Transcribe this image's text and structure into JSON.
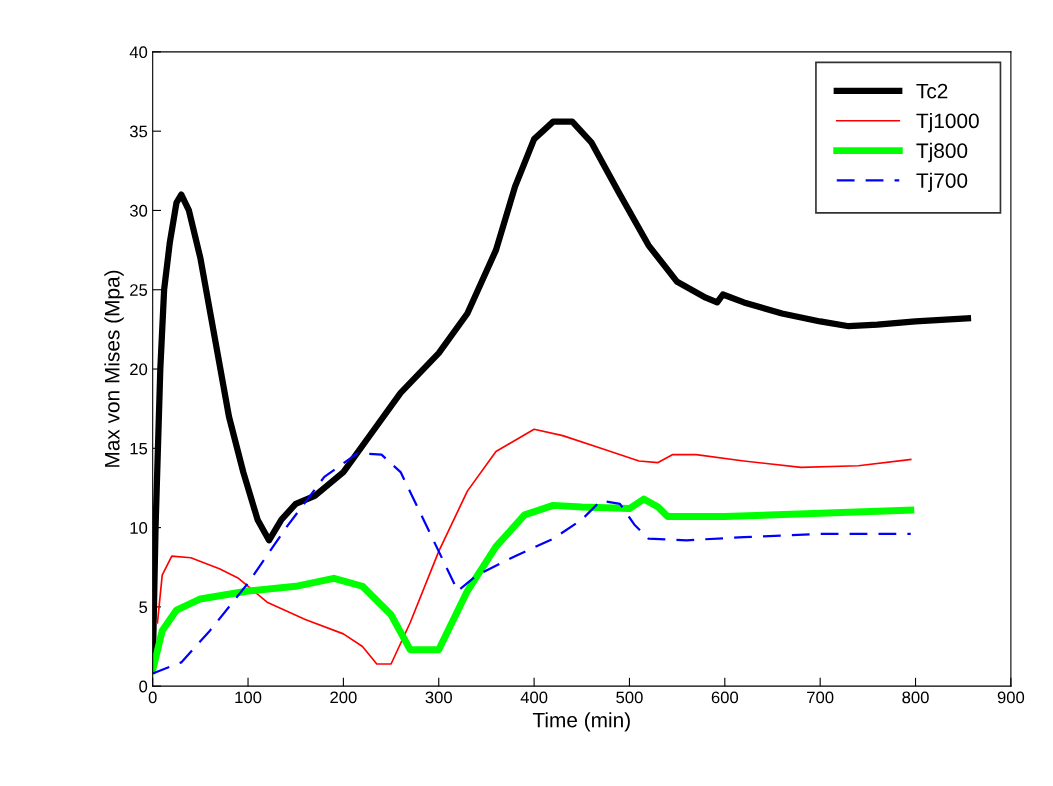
{
  "chart_data": {
    "type": "line",
    "xlabel": "Time (min)",
    "ylabel": "Max von Mises (Mpa)",
    "xlim": [
      0,
      900
    ],
    "xticks": [
      0,
      100,
      200,
      300,
      400,
      500,
      600,
      700,
      800,
      900
    ],
    "ylim": [
      0,
      40
    ],
    "yticks": [
      0,
      5,
      10,
      15,
      20,
      25,
      30,
      35,
      40
    ],
    "grid": false,
    "legend": "top right",
    "marker": "none",
    "series": [
      {
        "name": "Tc2",
        "color": "#000000",
        "line_style": "solid",
        "x": [
          0,
          3,
          8,
          12,
          18,
          25,
          30,
          38,
          50,
          65,
          80,
          95,
          110,
          122,
          135,
          150,
          170,
          200,
          230,
          260,
          300,
          330,
          360,
          380,
          400,
          420,
          440,
          460,
          490,
          520,
          550,
          580,
          592,
          598,
          620,
          660,
          700,
          730,
          760,
          800,
          855
        ],
        "values": [
          1,
          10,
          20,
          25,
          28,
          30.5,
          31,
          30,
          27,
          22,
          17,
          13.5,
          10.5,
          9.2,
          10.5,
          11.5,
          12,
          13.5,
          16,
          18.5,
          21,
          23.5,
          27.5,
          31.5,
          34.5,
          35.6,
          35.6,
          34.3,
          31,
          27.8,
          25.5,
          24.5,
          24.2,
          24.7,
          24.2,
          23.5,
          23,
          22.7,
          22.8,
          23,
          23.2
        ]
      },
      {
        "name": "Tj1000",
        "color": "#ff0000",
        "line_style": "solid",
        "x": [
          5,
          10,
          20,
          40,
          70,
          90,
          120,
          160,
          200,
          220,
          235,
          250,
          270,
          300,
          330,
          360,
          400,
          430,
          470,
          510,
          530,
          545,
          570,
          620,
          680,
          740,
          795
        ],
        "values": [
          4,
          7,
          8.2,
          8.1,
          7.4,
          6.8,
          5.3,
          4.2,
          3.3,
          2.5,
          1.4,
          1.4,
          4,
          8.5,
          12.3,
          14.8,
          16.2,
          15.8,
          15,
          14.2,
          14.1,
          14.6,
          14.6,
          14.2,
          13.8,
          13.9,
          14.3
        ]
      },
      {
        "name": "Tj800",
        "color": "#00ff00",
        "line_style": "solid",
        "x": [
          0,
          10,
          25,
          50,
          100,
          150,
          190,
          220,
          250,
          270,
          300,
          330,
          360,
          390,
          420,
          450,
          500,
          515,
          530,
          540,
          600,
          700,
          795
        ],
        "values": [
          1,
          3.5,
          4.8,
          5.5,
          6,
          6.3,
          6.8,
          6.3,
          4.5,
          2.3,
          2.3,
          6,
          8.8,
          10.8,
          11.4,
          11.3,
          11.2,
          11.8,
          11.3,
          10.7,
          10.7,
          10.9,
          11.1
        ]
      },
      {
        "name": "Tj700",
        "color": "#0000ff",
        "line_style": "dashed",
        "x": [
          0,
          30,
          60,
          100,
          140,
          180,
          215,
          240,
          260,
          280,
          300,
          320,
          340,
          380,
          420,
          450,
          470,
          490,
          505,
          520,
          560,
          620,
          700,
          795
        ],
        "values": [
          0.8,
          1.5,
          3.5,
          6.5,
          10,
          13.2,
          14.7,
          14.6,
          13.5,
          11,
          8.5,
          6,
          7,
          8.2,
          9.3,
          10.5,
          11.7,
          11.5,
          10.2,
          9.3,
          9.2,
          9.4,
          9.6,
          9.6
        ]
      }
    ]
  }
}
